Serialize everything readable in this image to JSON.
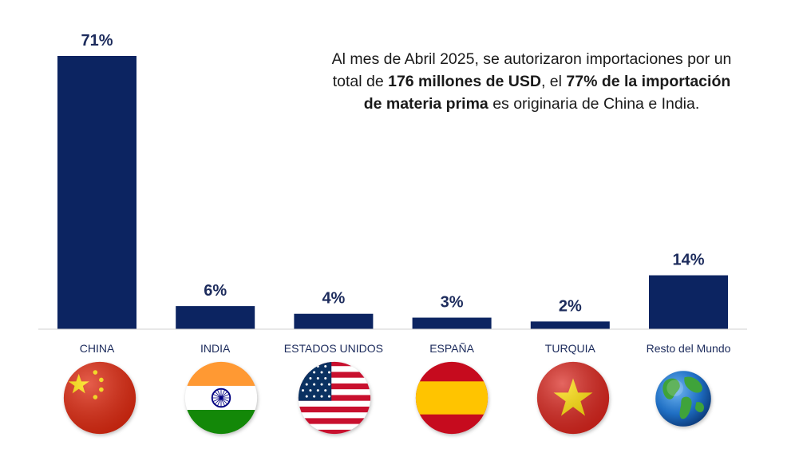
{
  "chart_data": {
    "type": "bar",
    "categories": [
      "CHINA",
      "INDIA",
      "ESTADOS UNIDOS",
      "ESPAÑA",
      "TURQUIA",
      "Resto del Mundo"
    ],
    "values": [
      71,
      6,
      4,
      3,
      2,
      14
    ],
    "value_labels": [
      "71%",
      "6%",
      "4%",
      "3%",
      "2%",
      "14%"
    ],
    "unit": "%",
    "ylim": [
      0,
      71
    ],
    "grid": false,
    "legend": "none",
    "bar_color": "#0c2461",
    "label_color": "#1c2b5c"
  },
  "note": {
    "part1": "Al mes de Abril 2025, se autorizaron importaciones por un total de ",
    "bold1": "176 millones de USD",
    "part2": ",  el ",
    "bold2": "77% de la importación de materia prima",
    "part3": " es originaria de China e India."
  },
  "flags": [
    {
      "country": "CHINA",
      "icon": "china-flag-icon"
    },
    {
      "country": "INDIA",
      "icon": "india-flag-icon"
    },
    {
      "country": "ESTADOS UNIDOS",
      "icon": "usa-flag-icon"
    },
    {
      "country": "ESPAÑA",
      "icon": "spain-flag-icon"
    },
    {
      "country": "TURQUIA",
      "icon": "vietnam-flag-icon"
    },
    {
      "country": "Resto del Mundo",
      "icon": "globe-icon"
    }
  ]
}
